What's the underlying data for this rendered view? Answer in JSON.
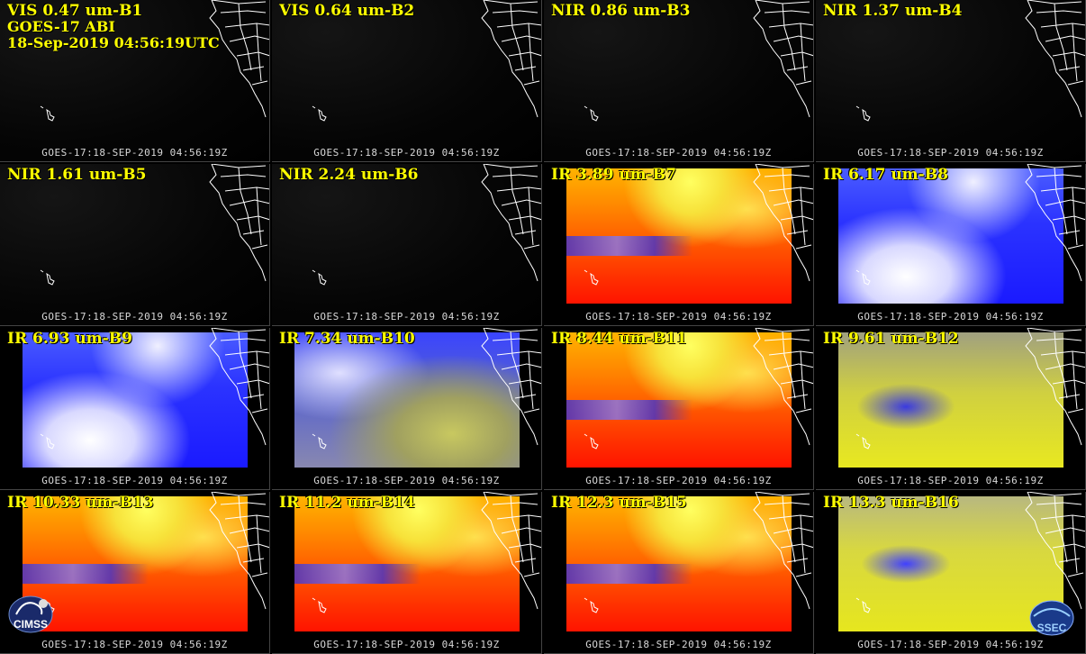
{
  "header": {
    "line1": "VIS 0.47 um-B1",
    "line2": "GOES-17 ABI",
    "line3": "18-Sep-2019 04:56:19UTC"
  },
  "footer_text": "GOES-17:18-SEP-2019 04:56:19Z",
  "panels": [
    {
      "title": "VIS 0.47 um-B1",
      "style": "dark"
    },
    {
      "title": "VIS 0.64 um-B2",
      "style": "dark"
    },
    {
      "title": "NIR 0.86 um-B3",
      "style": "dark"
    },
    {
      "title": "NIR 1.37 um-B4",
      "style": "dark"
    },
    {
      "title": "NIR 1.61 um-B5",
      "style": "dark"
    },
    {
      "title": "NIR 2.24 um-B6",
      "style": "dark"
    },
    {
      "title": "IR 3.89 um-B7",
      "style": "warm"
    },
    {
      "title": "IR 6.17 um-B8",
      "style": "blue"
    },
    {
      "title": "IR 6.93 um-B9",
      "style": "blue"
    },
    {
      "title": "IR 7.34 um-B10",
      "style": "bluey"
    },
    {
      "title": "IR 8.44 um-B11",
      "style": "warm"
    },
    {
      "title": "IR 9.61 um-B12",
      "style": "grayyellow"
    },
    {
      "title": "IR 10.33 um-B13",
      "style": "warm"
    },
    {
      "title": "IR 11.2 um-B14",
      "style": "warm"
    },
    {
      "title": "IR 12.3 um-B15",
      "style": "warm"
    },
    {
      "title": "IR 13.3 um-B16",
      "style": "yellow"
    }
  ],
  "logos": {
    "left": "CIMSS",
    "right": "SSEC"
  },
  "colors": {
    "title": "#ffff00",
    "footer": "#d8d8d8",
    "background": "#000000"
  }
}
